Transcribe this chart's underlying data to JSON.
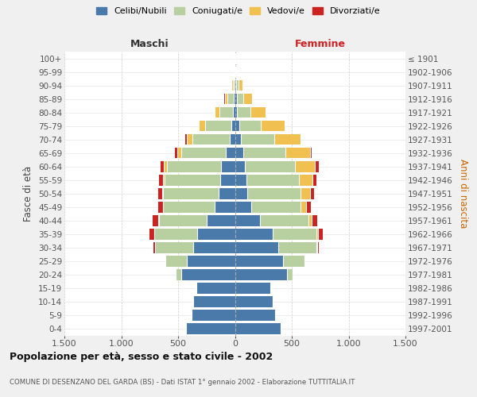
{
  "age_groups": [
    "0-4",
    "5-9",
    "10-14",
    "15-19",
    "20-24",
    "25-29",
    "30-34",
    "35-39",
    "40-44",
    "45-49",
    "50-54",
    "55-59",
    "60-64",
    "65-69",
    "70-74",
    "75-79",
    "80-84",
    "85-89",
    "90-94",
    "95-99",
    "100+"
  ],
  "birth_years": [
    "1997-2001",
    "1992-1996",
    "1987-1991",
    "1982-1986",
    "1977-1981",
    "1972-1976",
    "1967-1971",
    "1962-1966",
    "1957-1961",
    "1952-1956",
    "1947-1951",
    "1942-1946",
    "1937-1941",
    "1932-1936",
    "1927-1931",
    "1922-1926",
    "1917-1921",
    "1912-1916",
    "1907-1911",
    "1902-1906",
    "≤ 1901"
  ],
  "males_celibi": [
    430,
    380,
    370,
    340,
    470,
    420,
    370,
    330,
    250,
    180,
    140,
    130,
    120,
    80,
    45,
    30,
    18,
    12,
    5,
    3,
    2
  ],
  "males_coniugati": [
    0,
    0,
    2,
    5,
    50,
    190,
    330,
    380,
    420,
    450,
    490,
    490,
    480,
    390,
    330,
    230,
    120,
    55,
    15,
    2,
    0
  ],
  "males_vedovi": [
    0,
    0,
    0,
    0,
    0,
    0,
    0,
    1,
    3,
    5,
    10,
    15,
    25,
    40,
    50,
    55,
    40,
    22,
    8,
    1,
    0
  ],
  "males_divorziati": [
    0,
    0,
    0,
    0,
    2,
    5,
    14,
    38,
    48,
    42,
    38,
    35,
    30,
    15,
    10,
    5,
    3,
    2,
    1,
    0,
    0
  ],
  "females_nubili": [
    400,
    350,
    330,
    310,
    460,
    420,
    380,
    330,
    220,
    140,
    110,
    100,
    90,
    75,
    55,
    35,
    20,
    15,
    10,
    5,
    2
  ],
  "females_coniugate": [
    0,
    0,
    2,
    5,
    48,
    190,
    340,
    390,
    430,
    440,
    465,
    460,
    440,
    370,
    290,
    195,
    115,
    55,
    20,
    2,
    0
  ],
  "females_vedove": [
    0,
    0,
    0,
    0,
    1,
    2,
    6,
    12,
    28,
    48,
    85,
    125,
    175,
    215,
    230,
    210,
    135,
    80,
    35,
    8,
    1
  ],
  "females_divorziate": [
    0,
    0,
    0,
    0,
    2,
    5,
    14,
    38,
    48,
    42,
    38,
    35,
    30,
    15,
    10,
    5,
    3,
    2,
    1,
    0,
    0
  ],
  "colors_celibi": "#4a7aaa",
  "colors_coniugati": "#b8cfa0",
  "colors_vedovi": "#f0c050",
  "colors_divorziati": "#cc2222",
  "xlim": 1500,
  "xtick_vals": [
    -1500,
    -1000,
    -500,
    0,
    500,
    1000,
    1500
  ],
  "xtick_labels": [
    "1.500",
    "1.000",
    "500",
    "0",
    "500",
    "1.000",
    "1.500"
  ],
  "title": "Popolazione per età, sesso e stato civile - 2002",
  "subtitle": "COMUNE DI DESENZANO DEL GARDA (BS) - Dati ISTAT 1° gennaio 2002 - Elaborazione TUTTITALIA.IT",
  "label_maschi": "Maschi",
  "label_femmine": "Femmine",
  "ylabel_left": "Fasce di età",
  "ylabel_right": "Anni di nascita",
  "legend_labels": [
    "Celibi/Nubili",
    "Coniugati/e",
    "Vedovi/e",
    "Divorziati/e"
  ],
  "bg_color": "#f0f0f0",
  "plot_bg": "#ffffff"
}
